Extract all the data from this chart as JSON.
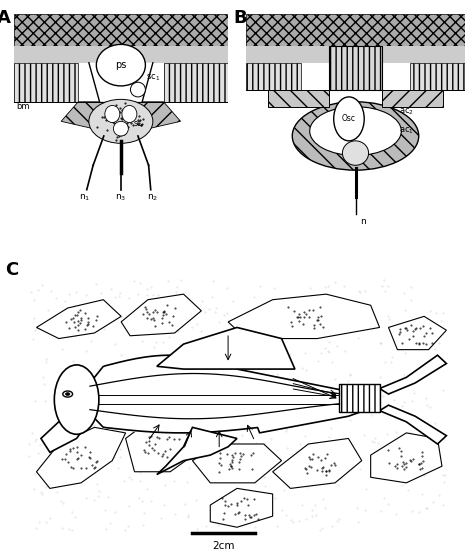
{
  "bg_color": "#ffffff",
  "panel_labels": [
    "A",
    "B",
    "C"
  ],
  "scale_bar": "2cm",
  "gray_dark": "#888888",
  "gray_mid": "#aaaaaa",
  "gray_light": "#cccccc",
  "gray_vlight": "#e8e8e8",
  "black": "#000000"
}
